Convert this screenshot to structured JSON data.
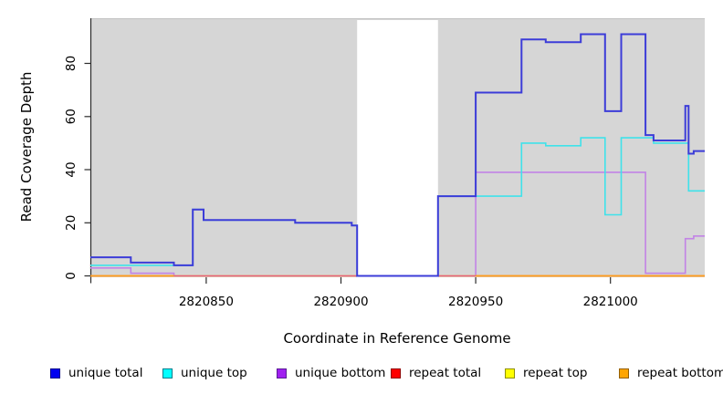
{
  "legend": {
    "items": [
      {
        "label": "unique total",
        "fill": "#0000f0",
        "border": "#00008b"
      },
      {
        "label": "unique top",
        "fill": "#00ffff",
        "border": "#007d8c"
      },
      {
        "label": "unique bottom",
        "fill": "#a020f0",
        "border": "#5a1b96"
      },
      {
        "label": "repeat total",
        "fill": "#ff0000",
        "border": "#900000"
      },
      {
        "label": "repeat top",
        "fill": "#ffff00",
        "border": "#8f8f00"
      },
      {
        "label": "repeat bottom",
        "fill": "#ffa500",
        "border": "#945f00"
      }
    ]
  },
  "chart_data": {
    "type": "line",
    "step_mode": "after",
    "title": "",
    "xlabel": "Coordinate in Reference Genome",
    "ylabel": "Read Coverage Depth",
    "xlim": [
      2820807,
      2821035
    ],
    "ylim": [
      0,
      97
    ],
    "xticks": [
      2820850,
      2820900,
      2820950,
      2821000
    ],
    "yticks": [
      0,
      20,
      40,
      60,
      80
    ],
    "grid": false,
    "legend_position": "bottom",
    "plot_bg_color": "#d6d6d6",
    "plot_border_color": "#c2c2c2",
    "axis_color": "#2b2b2b",
    "repeat_region_color": "#ffffff",
    "repeat_regions": [
      [
        2820906,
        2820936
      ]
    ],
    "series": [
      {
        "id": "unique-bottom",
        "name": "unique bottom",
        "line_color": "#c283e6",
        "line_width": 1.6,
        "segments": [
          [
            [
              2820807,
              3
            ],
            [
              2820822,
              1
            ],
            [
              2820838,
              0
            ],
            [
              2820950,
              39
            ],
            [
              2821013,
              1
            ],
            [
              2821027.8,
              14
            ],
            [
              2821030.9,
              15
            ],
            [
              2821035,
              15
            ]
          ]
        ]
      },
      {
        "id": "repeat-top",
        "name": "repeat top",
        "line_color": "#ffff00",
        "line_width": 1.6,
        "segments": [
          [
            [
              2820807,
              0
            ],
            [
              2821035,
              0
            ]
          ]
        ]
      },
      {
        "id": "repeat-total",
        "name": "repeat total",
        "line_color": "#e8607e",
        "line_width": 1.6,
        "segments": [
          [
            [
              2820807,
              0
            ],
            [
              2821035,
              0
            ]
          ]
        ]
      },
      {
        "id": "repeat-bottom",
        "name": "repeat bottom",
        "line_color": "#ff9d1e",
        "line_width": 1.8,
        "segments": [
          [
            [
              2820807,
              0
            ],
            [
              2820838,
              0
            ]
          ],
          [
            [
              2820950,
              0
            ],
            [
              2821035,
              0
            ]
          ]
        ]
      },
      {
        "id": "unique-top",
        "name": "unique top",
        "line_color": "#3fe2ea",
        "line_width": 1.6,
        "segments": [
          [
            [
              2820807,
              4
            ],
            [
              2820845,
              25
            ],
            [
              2820849,
              21
            ],
            [
              2820883,
              20
            ],
            [
              2820904,
              19
            ],
            [
              2820906,
              0
            ],
            [
              2820936,
              30
            ],
            [
              2820967,
              50
            ],
            [
              2820976,
              49
            ],
            [
              2820989,
              52
            ],
            [
              2820998,
              23
            ],
            [
              2821004,
              52
            ],
            [
              2821016,
              50
            ],
            [
              2821029,
              32
            ],
            [
              2821035,
              32
            ]
          ]
        ]
      },
      {
        "id": "unique-total",
        "name": "unique total",
        "line_color": "#3c3cd8",
        "line_width": 2,
        "segments": [
          [
            [
              2820807,
              7
            ],
            [
              2820822,
              5
            ],
            [
              2820838,
              4
            ],
            [
              2820845,
              25
            ],
            [
              2820849,
              21
            ],
            [
              2820883,
              20
            ],
            [
              2820904,
              19
            ],
            [
              2820906,
              0
            ],
            [
              2820936,
              30
            ],
            [
              2820950,
              69
            ],
            [
              2820967,
              89
            ],
            [
              2820976,
              88
            ],
            [
              2820989,
              91
            ],
            [
              2820998,
              62
            ],
            [
              2821004,
              91
            ],
            [
              2821013,
              53
            ],
            [
              2821016,
              51
            ],
            [
              2821027.8,
              64
            ],
            [
              2821029,
              46
            ],
            [
              2821030.9,
              47
            ],
            [
              2821035,
              47
            ]
          ]
        ]
      }
    ]
  }
}
